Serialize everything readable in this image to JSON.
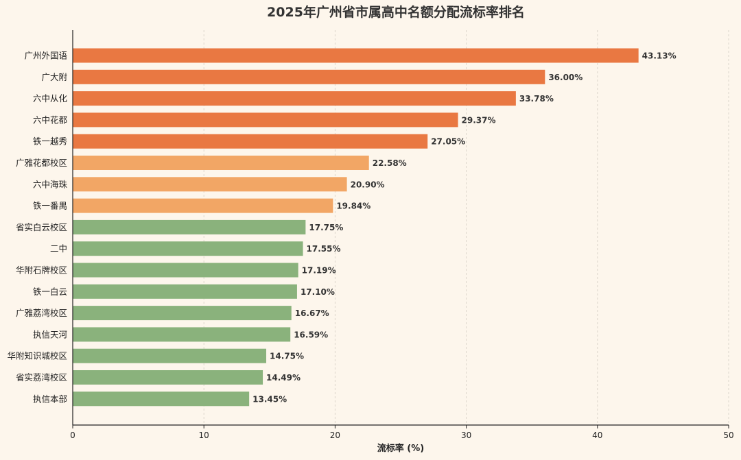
{
  "chart_data": {
    "type": "bar",
    "orientation": "horizontal",
    "title": "2025年广州省市属高中名额分配流标率排名",
    "xlabel": "流标率 (%)",
    "ylabel": "",
    "xlim": [
      0,
      50
    ],
    "xticks": [
      0,
      10,
      20,
      30,
      40,
      50
    ],
    "grid": true,
    "categories": [
      "广州外国语",
      "广大附",
      "六中从化",
      "六中花都",
      "铁一越秀",
      "广雅花都校区",
      "六中海珠",
      "铁一番禺",
      "省实白云校区",
      "二中",
      "华附石牌校区",
      "铁一白云",
      "广雅荔湾校区",
      "执信天河",
      "华附知识城校区",
      "省实荔湾校区",
      "执信本部"
    ],
    "values": [
      43.13,
      36.0,
      33.78,
      29.37,
      27.05,
      22.58,
      20.9,
      19.84,
      17.75,
      17.55,
      17.19,
      17.1,
      16.67,
      16.59,
      14.75,
      14.49,
      13.45
    ],
    "value_labels": [
      "43.13%",
      "36.00%",
      "33.78%",
      "29.37%",
      "27.05%",
      "22.58%",
      "20.90%",
      "19.84%",
      "17.75%",
      "17.55%",
      "17.19%",
      "17.10%",
      "16.67%",
      "16.59%",
      "14.75%",
      "14.49%",
      "13.45%"
    ],
    "bar_colors": [
      "#e97842",
      "#e97842",
      "#e97842",
      "#e97842",
      "#e97842",
      "#f2a665",
      "#f2a665",
      "#f2a665",
      "#8ab27c",
      "#8ab27c",
      "#8ab27c",
      "#8ab27c",
      "#8ab27c",
      "#8ab27c",
      "#8ab27c",
      "#8ab27c",
      "#8ab27c"
    ]
  }
}
